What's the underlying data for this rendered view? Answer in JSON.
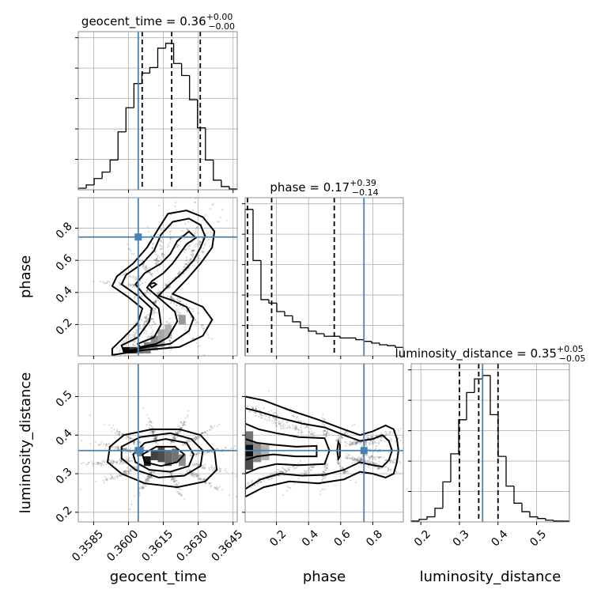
{
  "chart_data": {
    "type": "corner",
    "parameters": [
      "geocent_time",
      "phase",
      "luminosity_distance"
    ],
    "titles": {
      "geocent_time": {
        "name": "geocent_time",
        "median": "0.36",
        "plus": "+0.00",
        "minus": "−0.00"
      },
      "phase": {
        "name": "phase",
        "median": "0.17",
        "plus": "+0.39",
        "minus": "−0.14"
      },
      "luminosity_distance": {
        "name": "luminosity_distance",
        "median": "0.35",
        "plus": "+0.05",
        "minus": "−0.05"
      }
    },
    "axis_labels": {
      "geocent_time": "geocent_time",
      "phase": "phase",
      "luminosity_distance": "luminosity_distance"
    },
    "ranges": {
      "geocent_time": [
        0.35784,
        0.36468
      ],
      "phase": [
        0.005,
        0.99
      ],
      "luminosity_distance": [
        0.175,
        0.585
      ]
    },
    "ticks": {
      "geocent_time": {
        "values": [
          0.3585,
          0.36,
          0.3615,
          0.363,
          0.3645
        ],
        "labels": [
          "0.3585",
          "0.3600",
          "0.3615",
          "0.3630",
          "0.3645"
        ]
      },
      "phase": {
        "values": [
          0.2,
          0.4,
          0.6,
          0.8
        ],
        "labels": [
          "0.2",
          "0.4",
          "0.6",
          "0.8"
        ]
      },
      "luminosity_distance": {
        "values": [
          0.2,
          0.3,
          0.4,
          0.5
        ],
        "labels": [
          "0.2",
          "0.3",
          "0.4",
          "0.5"
        ]
      }
    },
    "truth": {
      "geocent_time": 0.36042,
      "phase": 0.745,
      "luminosity_distance": 0.36
    },
    "quantiles": {
      "geocent_time": [
        0.36059,
        0.36186,
        0.36309
      ],
      "phase": [
        0.02,
        0.17,
        0.56
      ],
      "luminosity_distance": [
        0.3,
        0.35,
        0.4
      ]
    },
    "histograms": {
      "geocent_time": {
        "edges": [
          0.35784,
          0.358182,
          0.358524,
          0.358866,
          0.359208,
          0.35955,
          0.359892,
          0.360234,
          0.360576,
          0.360918,
          0.36126,
          0.361602,
          0.361944,
          0.362286,
          0.362628,
          0.36297,
          0.363312,
          0.363654,
          0.363996,
          0.364338,
          0.36468
        ],
        "counts": [
          2,
          6,
          14,
          22,
          37,
          72,
          102,
          132,
          145,
          152,
          176,
          182,
          157,
          142,
          112,
          77,
          37,
          12,
          4,
          1
        ]
      },
      "phase": {
        "edges": [
          0.005,
          0.05425,
          0.1035,
          0.15275,
          0.202,
          0.25125,
          0.3005,
          0.34975,
          0.399,
          0.44825,
          0.4975,
          0.54675,
          0.596,
          0.64525,
          0.6945,
          0.74375,
          0.793,
          0.84225,
          0.8915,
          0.94075,
          0.99
        ],
        "counts": [
          172,
          112,
          66,
          62,
          52,
          47,
          40,
          33,
          29,
          26,
          23,
          23,
          21,
          21,
          19,
          17,
          15,
          13,
          12,
          10
        ]
      },
      "luminosity_distance": {
        "edges": [
          0.175,
          0.1955,
          0.216,
          0.2365,
          0.257,
          0.2775,
          0.298,
          0.3185,
          0.339,
          0.3595,
          0.38,
          0.4005,
          0.421,
          0.4415,
          0.462,
          0.4825,
          0.503,
          0.5235,
          0.544,
          0.5645,
          0.585
        ],
        "counts": [
          1,
          3,
          6,
          16,
          47,
          80,
          120,
          152,
          168,
          172,
          126,
          77,
          42,
          22,
          12,
          6,
          4,
          2,
          1,
          1
        ]
      }
    },
    "contours": {
      "phase_vs_geocent_time": [
        [
          [
            0.3605,
            0.06
          ],
          [
            0.3612,
            0.08
          ],
          [
            0.3617,
            0.12
          ],
          [
            0.3621,
            0.22
          ],
          [
            0.362,
            0.28
          ],
          [
            0.3616,
            0.33
          ],
          [
            0.3612,
            0.38
          ],
          [
            0.3608,
            0.43
          ],
          [
            0.361,
            0.47
          ],
          [
            0.3615,
            0.52
          ],
          [
            0.3619,
            0.58
          ],
          [
            0.3622,
            0.64
          ],
          [
            0.3625,
            0.7
          ],
          [
            0.3629,
            0.74
          ],
          [
            0.3626,
            0.78
          ],
          [
            0.3621,
            0.72
          ],
          [
            0.3618,
            0.64
          ],
          [
            0.3614,
            0.58
          ],
          [
            0.3607,
            0.52
          ],
          [
            0.3603,
            0.45
          ],
          [
            0.3607,
            0.38
          ],
          [
            0.3613,
            0.3
          ],
          [
            0.3614,
            0.2
          ],
          [
            0.3611,
            0.12
          ],
          [
            0.3604,
            0.08
          ]
        ],
        [
          [
            0.3598,
            0.03
          ],
          [
            0.3608,
            0.06
          ],
          [
            0.3618,
            0.08
          ],
          [
            0.3626,
            0.16
          ],
          [
            0.3628,
            0.24
          ],
          [
            0.3625,
            0.31
          ],
          [
            0.3619,
            0.35
          ],
          [
            0.3613,
            0.38
          ],
          [
            0.3617,
            0.44
          ],
          [
            0.3623,
            0.52
          ],
          [
            0.3628,
            0.6
          ],
          [
            0.3631,
            0.68
          ],
          [
            0.3633,
            0.75
          ],
          [
            0.3631,
            0.82
          ],
          [
            0.3626,
            0.86
          ],
          [
            0.3619,
            0.84
          ],
          [
            0.3614,
            0.76
          ],
          [
            0.3611,
            0.66
          ],
          [
            0.3606,
            0.58
          ],
          [
            0.3599,
            0.51
          ],
          [
            0.3597,
            0.45
          ],
          [
            0.3604,
            0.38
          ],
          [
            0.361,
            0.3
          ],
          [
            0.3609,
            0.22
          ],
          [
            0.3604,
            0.12
          ],
          [
            0.3597,
            0.07
          ]
        ],
        [
          [
            0.3593,
            0.01
          ],
          [
            0.3606,
            0.04
          ],
          [
            0.3622,
            0.06
          ],
          [
            0.3632,
            0.13
          ],
          [
            0.3636,
            0.23
          ],
          [
            0.3632,
            0.31
          ],
          [
            0.3624,
            0.36
          ],
          [
            0.3619,
            0.39
          ],
          [
            0.3625,
            0.48
          ],
          [
            0.3631,
            0.58
          ],
          [
            0.3636,
            0.68
          ],
          [
            0.3637,
            0.78
          ],
          [
            0.3632,
            0.87
          ],
          [
            0.3625,
            0.91
          ],
          [
            0.3617,
            0.89
          ],
          [
            0.3613,
            0.8
          ],
          [
            0.3608,
            0.68
          ],
          [
            0.3602,
            0.58
          ],
          [
            0.3595,
            0.5
          ],
          [
            0.3593,
            0.44
          ],
          [
            0.36,
            0.37
          ],
          [
            0.3606,
            0.3
          ],
          [
            0.3604,
            0.21
          ],
          [
            0.3598,
            0.12
          ],
          [
            0.3593,
            0.05
          ]
        ],
        [
          [
            0.361,
            0.43
          ],
          [
            0.3612,
            0.45
          ],
          [
            0.3611,
            0.46
          ],
          [
            0.3609,
            0.45
          ]
        ]
      ],
      "luminosity_distance_vs_geocent_time": [
        [
          [
            0.3606,
            0.35
          ],
          [
            0.3612,
            0.37
          ],
          [
            0.362,
            0.37
          ],
          [
            0.3624,
            0.35
          ],
          [
            0.3621,
            0.33
          ],
          [
            0.3614,
            0.32
          ],
          [
            0.3607,
            0.33
          ]
        ],
        [
          [
            0.3602,
            0.35
          ],
          [
            0.3607,
            0.38
          ],
          [
            0.3616,
            0.39
          ],
          [
            0.3625,
            0.38
          ],
          [
            0.3628,
            0.35
          ],
          [
            0.3626,
            0.32
          ],
          [
            0.3618,
            0.305
          ],
          [
            0.3609,
            0.31
          ],
          [
            0.3603,
            0.33
          ]
        ],
        [
          [
            0.3597,
            0.37
          ],
          [
            0.3605,
            0.395
          ],
          [
            0.3618,
            0.405
          ],
          [
            0.3627,
            0.39
          ],
          [
            0.3632,
            0.36
          ],
          [
            0.3631,
            0.32
          ],
          [
            0.3624,
            0.295
          ],
          [
            0.3613,
            0.29
          ],
          [
            0.3603,
            0.31
          ],
          [
            0.3597,
            0.34
          ]
        ],
        [
          [
            0.3592,
            0.37
          ],
          [
            0.3598,
            0.4
          ],
          [
            0.361,
            0.415
          ],
          [
            0.3622,
            0.415
          ],
          [
            0.3631,
            0.4
          ],
          [
            0.3637,
            0.36
          ],
          [
            0.3638,
            0.31
          ],
          [
            0.3633,
            0.28
          ],
          [
            0.3621,
            0.265
          ],
          [
            0.3607,
            0.275
          ],
          [
            0.3597,
            0.3
          ],
          [
            0.3591,
            0.33
          ]
        ]
      ],
      "luminosity_distance_vs_phase": [
        [
          [
            0.005,
            0.335
          ],
          [
            0.08,
            0.345
          ],
          [
            0.18,
            0.35
          ],
          [
            0.32,
            0.345
          ],
          [
            0.45,
            0.345
          ],
          [
            0.45,
            0.372
          ],
          [
            0.32,
            0.37
          ],
          [
            0.18,
            0.375
          ],
          [
            0.08,
            0.38
          ],
          [
            0.005,
            0.39
          ]
        ],
        [
          [
            0.005,
            0.3
          ],
          [
            0.09,
            0.315
          ],
          [
            0.2,
            0.325
          ],
          [
            0.34,
            0.322
          ],
          [
            0.5,
            0.325
          ],
          [
            0.53,
            0.36
          ],
          [
            0.5,
            0.392
          ],
          [
            0.34,
            0.395
          ],
          [
            0.2,
            0.405
          ],
          [
            0.09,
            0.415
          ],
          [
            0.005,
            0.43
          ]
        ],
        [
          [
            0.005,
            0.26
          ],
          [
            0.1,
            0.285
          ],
          [
            0.22,
            0.3
          ],
          [
            0.36,
            0.295
          ],
          [
            0.5,
            0.297
          ],
          [
            0.62,
            0.31
          ],
          [
            0.72,
            0.33
          ],
          [
            0.8,
            0.322
          ],
          [
            0.86,
            0.318
          ],
          [
            0.9,
            0.335
          ],
          [
            0.92,
            0.36
          ],
          [
            0.9,
            0.385
          ],
          [
            0.86,
            0.4
          ],
          [
            0.8,
            0.39
          ],
          [
            0.72,
            0.385
          ],
          [
            0.62,
            0.4
          ],
          [
            0.5,
            0.42
          ],
          [
            0.36,
            0.43
          ],
          [
            0.22,
            0.445
          ],
          [
            0.1,
            0.46
          ],
          [
            0.005,
            0.47
          ]
        ],
        [
          [
            0.005,
            0.24
          ],
          [
            0.12,
            0.265
          ],
          [
            0.28,
            0.28
          ],
          [
            0.46,
            0.275
          ],
          [
            0.62,
            0.285
          ],
          [
            0.72,
            0.305
          ],
          [
            0.8,
            0.3
          ],
          [
            0.88,
            0.29
          ],
          [
            0.93,
            0.3
          ],
          [
            0.95,
            0.33
          ],
          [
            0.96,
            0.36
          ],
          [
            0.95,
            0.39
          ],
          [
            0.93,
            0.415
          ],
          [
            0.88,
            0.425
          ],
          [
            0.8,
            0.41
          ],
          [
            0.72,
            0.4
          ],
          [
            0.62,
            0.415
          ],
          [
            0.46,
            0.44
          ],
          [
            0.28,
            0.465
          ],
          [
            0.12,
            0.49
          ],
          [
            0.005,
            0.5
          ]
        ],
        [
          [
            0.585,
            0.338
          ],
          [
            0.595,
            0.345
          ],
          [
            0.595,
            0.375
          ],
          [
            0.585,
            0.382
          ],
          [
            0.578,
            0.36
          ]
        ]
      ]
    },
    "density_blocks": {
      "phase_vs_geocent_time": [
        {
          "x0": 0.35976,
          "x1": 0.36006,
          "y0": 0.02,
          "y1": 0.06,
          "level": 0.95
        },
        {
          "x0": 0.36006,
          "x1": 0.36036,
          "y0": 0.02,
          "y1": 0.06,
          "level": 0.8
        },
        {
          "x0": 0.36036,
          "x1": 0.36066,
          "y0": 0.02,
          "y1": 0.06,
          "level": 0.55
        },
        {
          "x0": 0.36066,
          "x1": 0.36096,
          "y0": 0.02,
          "y1": 0.09,
          "level": 0.5
        },
        {
          "x0": 0.36096,
          "x1": 0.36126,
          "y0": 0.04,
          "y1": 0.13,
          "level": 0.45
        },
        {
          "x0": 0.36126,
          "x1": 0.36156,
          "y0": 0.06,
          "y1": 0.17,
          "level": 0.35
        },
        {
          "x0": 0.36156,
          "x1": 0.36186,
          "y0": 0.12,
          "y1": 0.2,
          "level": 0.3
        },
        {
          "x0": 0.36216,
          "x1": 0.36246,
          "y0": 0.2,
          "y1": 0.26,
          "level": 0.4
        }
      ],
      "luminosity_distance_vs_geocent_time": [
        {
          "x0": 0.36066,
          "x1": 0.36096,
          "y0": 0.32,
          "y1": 0.345,
          "level": 0.9
        },
        {
          "x0": 0.36096,
          "x1": 0.36126,
          "y0": 0.335,
          "y1": 0.36,
          "level": 0.75
        },
        {
          "x0": 0.36126,
          "x1": 0.36156,
          "y0": 0.33,
          "y1": 0.37,
          "level": 0.7
        },
        {
          "x0": 0.36156,
          "x1": 0.36186,
          "y0": 0.32,
          "y1": 0.36,
          "level": 0.6
        },
        {
          "x0": 0.36186,
          "x1": 0.36216,
          "y0": 0.33,
          "y1": 0.365,
          "level": 0.55
        },
        {
          "x0": 0.36036,
          "x1": 0.36066,
          "y0": 0.345,
          "y1": 0.37,
          "level": 0.5
        },
        {
          "x0": 0.36216,
          "x1": 0.36246,
          "y0": 0.32,
          "y1": 0.35,
          "level": 0.45
        }
      ],
      "luminosity_distance_vs_phase": [
        {
          "x0": 0.005,
          "x1": 0.055,
          "y0": 0.345,
          "y1": 0.375,
          "level": 0.95
        },
        {
          "x0": 0.005,
          "x1": 0.055,
          "y0": 0.31,
          "y1": 0.345,
          "level": 0.7
        },
        {
          "x0": 0.005,
          "x1": 0.055,
          "y0": 0.375,
          "y1": 0.41,
          "level": 0.55
        },
        {
          "x0": 0.055,
          "x1": 0.105,
          "y0": 0.33,
          "y1": 0.38,
          "level": 0.45
        },
        {
          "x0": 0.105,
          "x1": 0.155,
          "y0": 0.335,
          "y1": 0.375,
          "level": 0.3
        }
      ]
    },
    "grid": true
  }
}
